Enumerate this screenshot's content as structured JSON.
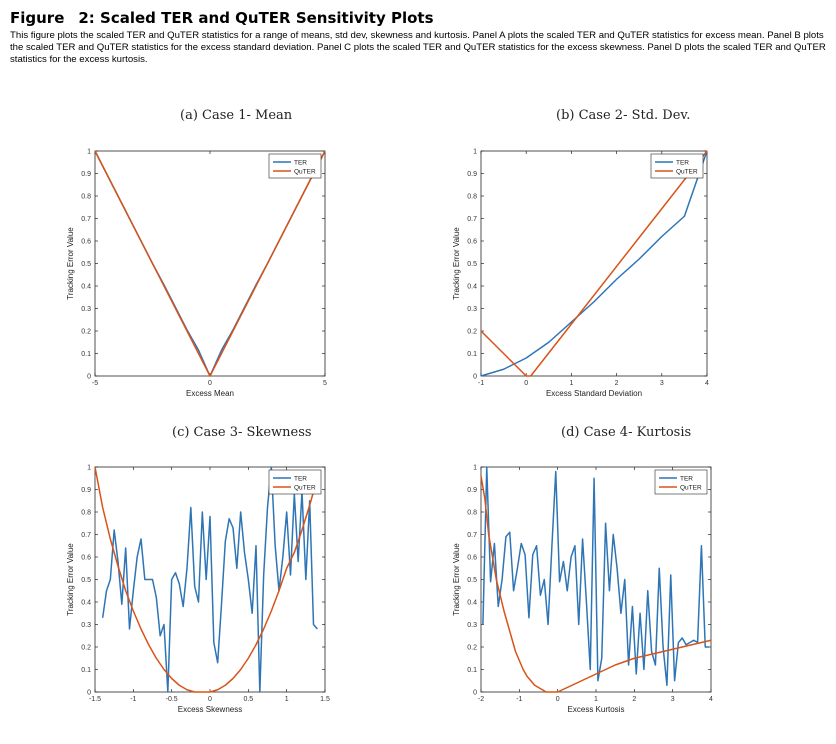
{
  "figure": {
    "label": "Figure",
    "number": "2:",
    "title": "Scaled TER and QuTER Sensitivity Plots",
    "caption": "This figure plots the scaled TER and QuTER statistics for a range of means, std dev, skewness and kurtosis. Panel A plots the scaled TER and QuTER statistics for excess mean. Panel B plots the scaled TER and QuTER statistics for the excess standard deviation. Panel C plots the scaled TER and QuTER statistics for the excess skewness. Panel D plots the scaled TER and QuTER statistics for the excess kurtosis."
  },
  "colors": {
    "ter": "#2E75B6",
    "quter": "#D95319",
    "axis": "#262626"
  },
  "chart_data": [
    {
      "type": "line",
      "title": "(a) Case 1- Mean",
      "xlabel": "Excess Mean",
      "ylabel": "Tracking Error Value",
      "xlim": [
        -5,
        5
      ],
      "ylim": [
        0,
        1
      ],
      "xticks": [
        -5,
        0,
        5
      ],
      "yticks": [
        0,
        0.1,
        0.2,
        0.3,
        0.4,
        0.5,
        0.6,
        0.7,
        0.8,
        0.9,
        1
      ],
      "legend": [
        "TER",
        "QuTER"
      ],
      "series": [
        {
          "name": "TER",
          "x": [
            -5,
            -4.5,
            -4,
            -3.5,
            -3,
            -2.5,
            -2,
            -1.5,
            -1,
            -0.5,
            0,
            0.5,
            1,
            1.5,
            2,
            2.5,
            3,
            3.5,
            4,
            4.5,
            5
          ],
          "values": [
            1,
            0.9,
            0.8,
            0.7,
            0.6,
            0.5,
            0.405,
            0.305,
            0.205,
            0.115,
            0,
            0.115,
            0.205,
            0.305,
            0.405,
            0.5,
            0.6,
            0.7,
            0.8,
            0.9,
            1
          ]
        },
        {
          "name": "QuTER",
          "x": [
            -5,
            0,
            5
          ],
          "values": [
            1,
            0,
            1
          ]
        }
      ]
    },
    {
      "type": "line",
      "title": "(b) Case 2- Std. Dev.",
      "xlabel": "Excess Standard Deviation",
      "ylabel": "Tracking Error Value",
      "xlim": [
        -1,
        4
      ],
      "ylim": [
        0,
        1
      ],
      "xticks": [
        -1,
        0,
        1,
        2,
        3,
        4
      ],
      "yticks": [
        0,
        0.1,
        0.2,
        0.3,
        0.4,
        0.5,
        0.6,
        0.7,
        0.8,
        0.9,
        1
      ],
      "legend": [
        "TER",
        "QuTER"
      ],
      "series": [
        {
          "name": "TER",
          "x": [
            -1,
            -0.5,
            0,
            0.5,
            1,
            1.5,
            2,
            2.5,
            3,
            3.5,
            4
          ],
          "values": [
            0,
            0.03,
            0.08,
            0.15,
            0.24,
            0.33,
            0.43,
            0.52,
            0.62,
            0.71,
            1.0
          ]
        },
        {
          "name": "QuTER",
          "x": [
            -1,
            -0.5,
            0,
            0.1,
            4
          ],
          "values": [
            0.2,
            0.1,
            0,
            0,
            1
          ]
        }
      ]
    },
    {
      "type": "line",
      "title": "(c) Case 3- Skewness",
      "xlabel": "Excess Skewness",
      "ylabel": "Tracking Error Value",
      "xlim": [
        -1.5,
        1.5
      ],
      "ylim": [
        0,
        1
      ],
      "xticks": [
        -1.5,
        -1,
        -0.5,
        0,
        0.5,
        1,
        1.5
      ],
      "yticks": [
        0,
        0.1,
        0.2,
        0.3,
        0.4,
        0.5,
        0.6,
        0.7,
        0.8,
        0.9,
        1
      ],
      "legend": [
        "TER",
        "QuTER"
      ],
      "series": [
        {
          "name": "TER",
          "x": [
            -1.4,
            -1.35,
            -1.3,
            -1.25,
            -1.2,
            -1.15,
            -1.1,
            -1.05,
            -1.0,
            -0.95,
            -0.9,
            -0.85,
            -0.8,
            -0.75,
            -0.7,
            -0.65,
            -0.6,
            -0.55,
            -0.5,
            -0.45,
            -0.4,
            -0.35,
            -0.3,
            -0.25,
            -0.2,
            -0.15,
            -0.1,
            -0.05,
            0,
            0.05,
            0.1,
            0.15,
            0.2,
            0.25,
            0.3,
            0.35,
            0.4,
            0.45,
            0.5,
            0.55,
            0.6,
            0.65,
            0.7,
            0.75,
            0.8,
            0.85,
            0.9,
            0.95,
            1.0,
            1.05,
            1.1,
            1.15,
            1.2,
            1.25,
            1.3,
            1.35,
            1.4
          ],
          "values": [
            0.33,
            0.45,
            0.5,
            0.72,
            0.58,
            0.39,
            0.64,
            0.28,
            0.45,
            0.6,
            0.68,
            0.5,
            0.5,
            0.5,
            0.42,
            0.25,
            0.3,
            0.0,
            0.5,
            0.53,
            0.48,
            0.38,
            0.55,
            0.82,
            0.47,
            0.4,
            0.8,
            0.5,
            0.78,
            0.22,
            0.13,
            0.39,
            0.67,
            0.77,
            0.73,
            0.55,
            0.8,
            0.62,
            0.5,
            0.35,
            0.65,
            0.0,
            0.52,
            0.82,
            1.0,
            0.65,
            0.45,
            0.6,
            0.8,
            0.52,
            0.88,
            0.58,
            0.89,
            0.5,
            0.85,
            0.3,
            0.28
          ]
        },
        {
          "name": "QuTER",
          "x": [
            -1.5,
            -1.4,
            -1.3,
            -1.2,
            -1.1,
            -1.0,
            -0.9,
            -0.8,
            -0.7,
            -0.6,
            -0.5,
            -0.4,
            -0.3,
            -0.2,
            -0.1,
            0,
            0.1,
            0.2,
            0.3,
            0.4,
            0.5,
            0.6,
            0.7,
            0.8,
            0.9,
            1.0,
            1.1,
            1.2,
            1.3,
            1.4
          ],
          "values": [
            1.0,
            0.82,
            0.68,
            0.56,
            0.45,
            0.36,
            0.28,
            0.21,
            0.15,
            0.1,
            0.06,
            0.03,
            0.01,
            0.0,
            0.0,
            0.0,
            0.01,
            0.03,
            0.06,
            0.1,
            0.15,
            0.21,
            0.28,
            0.36,
            0.45,
            0.55,
            0.62,
            0.72,
            0.83,
            0.95
          ]
        }
      ]
    },
    {
      "type": "line",
      "title": "(d) Case 4- Kurtosis",
      "xlabel": "Excess Kurtosis",
      "ylabel": "Tracking Error Value",
      "xlim": [
        -2,
        4
      ],
      "ylim": [
        0,
        1
      ],
      "xticks": [
        -2,
        -1,
        0,
        1,
        2,
        3,
        4
      ],
      "yticks": [
        0,
        0.1,
        0.2,
        0.3,
        0.4,
        0.5,
        0.6,
        0.7,
        0.8,
        0.9,
        1
      ],
      "legend": [
        "TER",
        "QuTER"
      ],
      "series": [
        {
          "name": "TER",
          "x": [
            -1.95,
            -1.85,
            -1.75,
            -1.65,
            -1.55,
            -1.45,
            -1.35,
            -1.25,
            -1.15,
            -1.05,
            -0.95,
            -0.85,
            -0.75,
            -0.65,
            -0.55,
            -0.45,
            -0.35,
            -0.25,
            -0.15,
            -0.05,
            0.05,
            0.15,
            0.25,
            0.35,
            0.45,
            0.55,
            0.65,
            0.75,
            0.85,
            0.95,
            1.05,
            1.15,
            1.25,
            1.35,
            1.45,
            1.55,
            1.65,
            1.75,
            1.85,
            1.95,
            2.05,
            2.15,
            2.25,
            2.35,
            2.45,
            2.55,
            2.65,
            2.75,
            2.85,
            2.95,
            3.05,
            3.15,
            3.25,
            3.35,
            3.45,
            3.55,
            3.65,
            3.75,
            3.85,
            3.95
          ],
          "values": [
            0.3,
            1.0,
            0.49,
            0.66,
            0.38,
            0.5,
            0.69,
            0.71,
            0.45,
            0.55,
            0.66,
            0.61,
            0.33,
            0.61,
            0.65,
            0.43,
            0.5,
            0.3,
            0.65,
            0.98,
            0.49,
            0.58,
            0.45,
            0.6,
            0.65,
            0.3,
            0.68,
            0.4,
            0.1,
            0.95,
            0.05,
            0.15,
            0.75,
            0.45,
            0.7,
            0.55,
            0.35,
            0.5,
            0.12,
            0.38,
            0.08,
            0.35,
            0.1,
            0.45,
            0.18,
            0.12,
            0.55,
            0.2,
            0.03,
            0.52,
            0.05,
            0.22,
            0.24,
            0.21,
            0.22,
            0.23,
            0.22,
            0.65,
            0.2,
            0.2
          ]
        },
        {
          "name": "QuTER",
          "x": [
            -2.0,
            -1.9,
            -1.8,
            -1.7,
            -1.6,
            -1.5,
            -1.4,
            -1.3,
            -1.2,
            -1.1,
            -1.0,
            -0.9,
            -0.8,
            -0.7,
            -0.6,
            -0.5,
            -0.4,
            -0.3,
            -0.2,
            -0.1,
            0,
            0.5,
            1.0,
            1.5,
            2.0,
            2.5,
            3.0,
            3.5,
            4.0
          ],
          "values": [
            0.96,
            0.86,
            0.7,
            0.6,
            0.5,
            0.43,
            0.36,
            0.3,
            0.24,
            0.18,
            0.14,
            0.1,
            0.07,
            0.05,
            0.03,
            0.02,
            0.01,
            0.0,
            0.0,
            0.0,
            0.0,
            0.04,
            0.08,
            0.12,
            0.15,
            0.17,
            0.19,
            0.21,
            0.23
          ]
        }
      ]
    }
  ]
}
